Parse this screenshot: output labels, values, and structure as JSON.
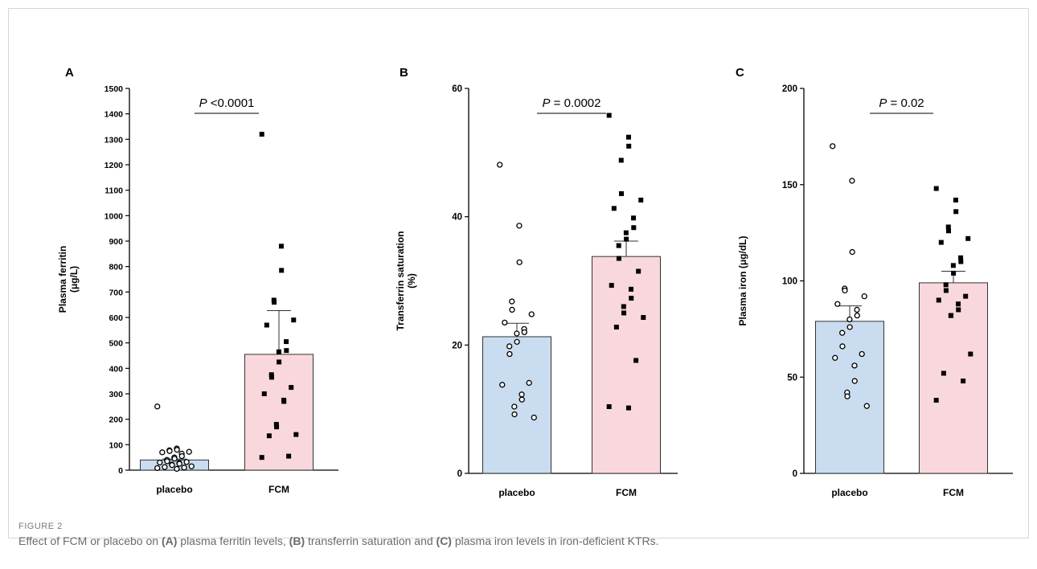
{
  "figure": {
    "label": "FIGURE 2",
    "caption_parts": [
      {
        "text": "Effect of FCM or placebo on ",
        "bold": false
      },
      {
        "text": "(A)",
        "bold": true
      },
      {
        "text": " plasma ferritin levels, ",
        "bold": false
      },
      {
        "text": "(B)",
        "bold": true
      },
      {
        "text": " transferrin saturation and ",
        "bold": false
      },
      {
        "text": "(C)",
        "bold": true
      },
      {
        "text": " plasma iron levels in iron-deficient KTRs.",
        "bold": false
      }
    ]
  },
  "colors": {
    "placebo_bar": "#c9dcf0",
    "fcm_bar": "#f9d8dd",
    "axis": "#000000",
    "marker": "#000000"
  },
  "chart_data": [
    {
      "type": "bar",
      "panel": "A",
      "title": "",
      "ylabel": "Plasma ferritin (μg/L)",
      "ylabel_lines": [
        "Plasma ferritin",
        "(μg/L)"
      ],
      "xlabel": "",
      "categories": [
        "placebo",
        "FCM"
      ],
      "ylim": [
        0,
        1500
      ],
      "yticks": [
        0,
        100,
        200,
        300,
        400,
        500,
        600,
        700,
        800,
        900,
        1000,
        1100,
        1200,
        1300,
        1400,
        1500
      ],
      "bar_values": [
        40,
        455
      ],
      "error_upper": [
        44,
        627
      ],
      "p_value": {
        "italic": "P",
        "rest": " <0.0001"
      },
      "series": [
        {
          "group": "placebo",
          "marker": "open-circle",
          "points": [
            250,
            85,
            80,
            78,
            75,
            72,
            70,
            65,
            55,
            50,
            45,
            40,
            35,
            32,
            30,
            28,
            25,
            22,
            20,
            15,
            12,
            10,
            8,
            5
          ]
        },
        {
          "group": "FCM",
          "marker": "filled-square",
          "points": [
            1320,
            880,
            785,
            668,
            660,
            590,
            570,
            505,
            470,
            465,
            425,
            375,
            365,
            325,
            300,
            275,
            270,
            180,
            170,
            140,
            135,
            55,
            50
          ]
        }
      ]
    },
    {
      "type": "bar",
      "panel": "B",
      "title": "",
      "ylabel": "Transferrin saturation (%)",
      "ylabel_lines": [
        "Transferrin saturation",
        "(%)"
      ],
      "xlabel": "",
      "categories": [
        "placebo",
        "FCM"
      ],
      "ylim": [
        0,
        60
      ],
      "yticks": [
        0,
        20,
        40,
        60
      ],
      "bar_values": [
        21.3,
        33.8
      ],
      "error_upper": [
        23.4,
        36.2
      ],
      "p_value": {
        "italic": "P",
        "rest": " = 0.0002"
      },
      "series": [
        {
          "group": "placebo",
          "marker": "open-circle",
          "points": [
            48.1,
            38.6,
            32.9,
            26.8,
            25.5,
            24.8,
            23.5,
            22.5,
            22.0,
            21.8,
            20.5,
            19.8,
            18.6,
            14.1,
            13.8,
            12.3,
            11.5,
            10.4,
            9.2,
            8.7
          ]
        },
        {
          "group": "FCM",
          "marker": "filled-square",
          "points": [
            55.8,
            52.4,
            51.0,
            48.8,
            43.6,
            42.6,
            41.3,
            39.8,
            38.3,
            37.5,
            36.5,
            35.5,
            33.5,
            31.5,
            29.3,
            28.7,
            27.3,
            26.0,
            25.0,
            24.3,
            22.8,
            17.6,
            10.4,
            10.2
          ]
        }
      ]
    },
    {
      "type": "bar",
      "panel": "C",
      "title": "",
      "ylabel": "Plasma iron (μg/dL)",
      "ylabel_lines": [
        "Plasma iron (μg/dL)"
      ],
      "xlabel": "",
      "categories": [
        "placebo",
        "FCM"
      ],
      "ylim": [
        0,
        200
      ],
      "yticks": [
        0,
        50,
        100,
        150,
        200
      ],
      "bar_values": [
        79,
        99
      ],
      "error_upper": [
        87,
        105
      ],
      "p_value": {
        "italic": "P",
        "rest": " = 0.02"
      },
      "series": [
        {
          "group": "placebo",
          "marker": "open-circle",
          "points": [
            170,
            152,
            115,
            96,
            95,
            92,
            88,
            85,
            82,
            80,
            76,
            73,
            66,
            62,
            60,
            56,
            48,
            42,
            40,
            35
          ]
        },
        {
          "group": "FCM",
          "marker": "filled-square",
          "points": [
            148,
            142,
            136,
            128,
            126,
            122,
            120,
            112,
            110,
            108,
            104,
            98,
            95,
            92,
            90,
            88,
            85,
            82,
            82,
            62,
            52,
            48,
            38
          ]
        }
      ]
    }
  ]
}
